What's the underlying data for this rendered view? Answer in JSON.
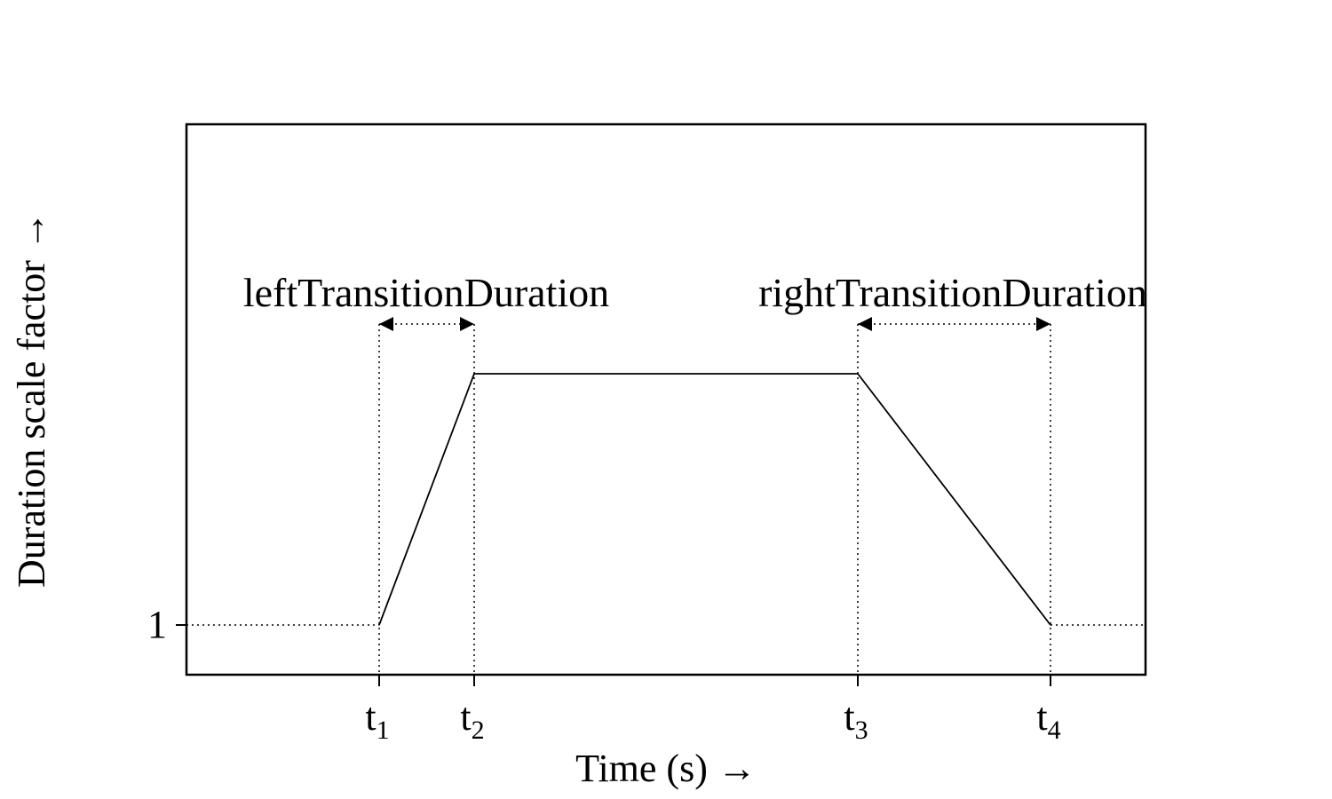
{
  "axes": {
    "x_label": "Time (s) →",
    "y_label": "Duration scale factor →",
    "y_tick_label": "1"
  },
  "annotations": {
    "left": "leftTransitionDuration",
    "right": "rightTransitionDuration"
  },
  "x_ticks": [
    {
      "base": "t",
      "sub": "1"
    },
    {
      "base": "t",
      "sub": "2"
    },
    {
      "base": "t",
      "sub": "3"
    },
    {
      "base": "t",
      "sub": "4"
    }
  ],
  "colors": {
    "stroke": "#000000"
  }
}
